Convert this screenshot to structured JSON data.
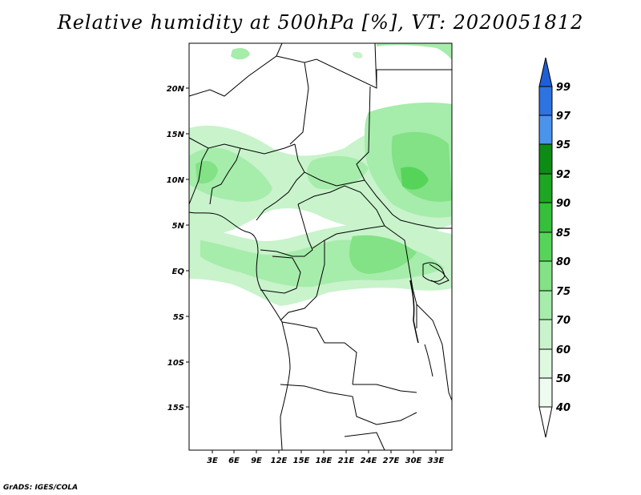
{
  "title": "Relative humidity at 500hPa [%], VT: 2020051812",
  "credit": "GrADS: IGES/COLA",
  "map": {
    "lon_labels": [
      "3E",
      "6E",
      "9E",
      "12E",
      "15E",
      "18E",
      "21E",
      "24E",
      "27E",
      "30E",
      "33E"
    ],
    "lat_labels": [
      "20N",
      "15N",
      "10N",
      "5N",
      "EQ",
      "5S",
      "10S",
      "15S"
    ]
  },
  "colorbar": {
    "levels": [
      "99",
      "97",
      "95",
      "92",
      "90",
      "85",
      "80",
      "75",
      "70",
      "60",
      "50",
      "40"
    ],
    "colors": {
      "above_99": "#1f5fd6",
      "97_99": "#2e74e0",
      "95_97": "#4a94ec",
      "92_95": "#0c8c15",
      "90_92": "#1ea522",
      "85_90": "#36bf3a",
      "80_85": "#56d45a",
      "75_80": "#82e285",
      "70_75": "#a6ecab",
      "60_70": "#c8f3cb",
      "50_60": "#dff8e0",
      "40_50": "#eefbef",
      "below_40": "#ffffff"
    }
  }
}
